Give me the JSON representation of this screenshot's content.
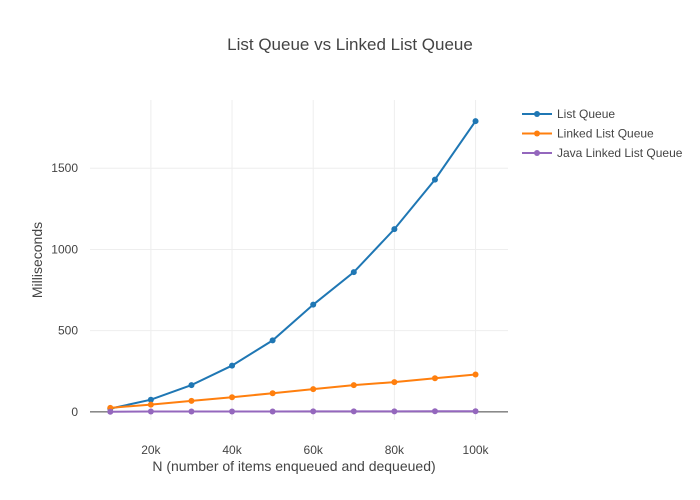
{
  "chart_data": {
    "type": "line",
    "title": "List Queue vs Linked List Queue",
    "xlabel": "N (number of items enqueued and dequeued)",
    "ylabel": "Milliseconds",
    "x": [
      10000,
      20000,
      30000,
      40000,
      50000,
      60000,
      70000,
      80000,
      90000,
      100000
    ],
    "xlim": [
      5000,
      108000
    ],
    "ylim": [
      -50,
      1920
    ],
    "x_ticks": [
      20000,
      40000,
      60000,
      80000,
      100000
    ],
    "x_tick_labels": [
      "20k",
      "40k",
      "60k",
      "80k",
      "100k"
    ],
    "y_ticks": [
      0,
      500,
      1000,
      1500
    ],
    "y_tick_labels": [
      "0",
      "500",
      "1000",
      "1500"
    ],
    "grid": true,
    "legend_position": "top-right",
    "series": [
      {
        "name": "List Queue",
        "color": "#1f77b4",
        "values": [
          20,
          75,
          165,
          285,
          440,
          660,
          860,
          1125,
          1430,
          1790
        ]
      },
      {
        "name": "Linked List Queue",
        "color": "#ff7f0e",
        "values": [
          25,
          45,
          68,
          90,
          115,
          140,
          165,
          183,
          207,
          230
        ]
      },
      {
        "name": "Java Linked List Queue",
        "color": "#9467bd",
        "values": [
          1,
          2,
          2,
          2,
          2,
          3,
          3,
          3,
          4,
          4
        ]
      }
    ]
  }
}
